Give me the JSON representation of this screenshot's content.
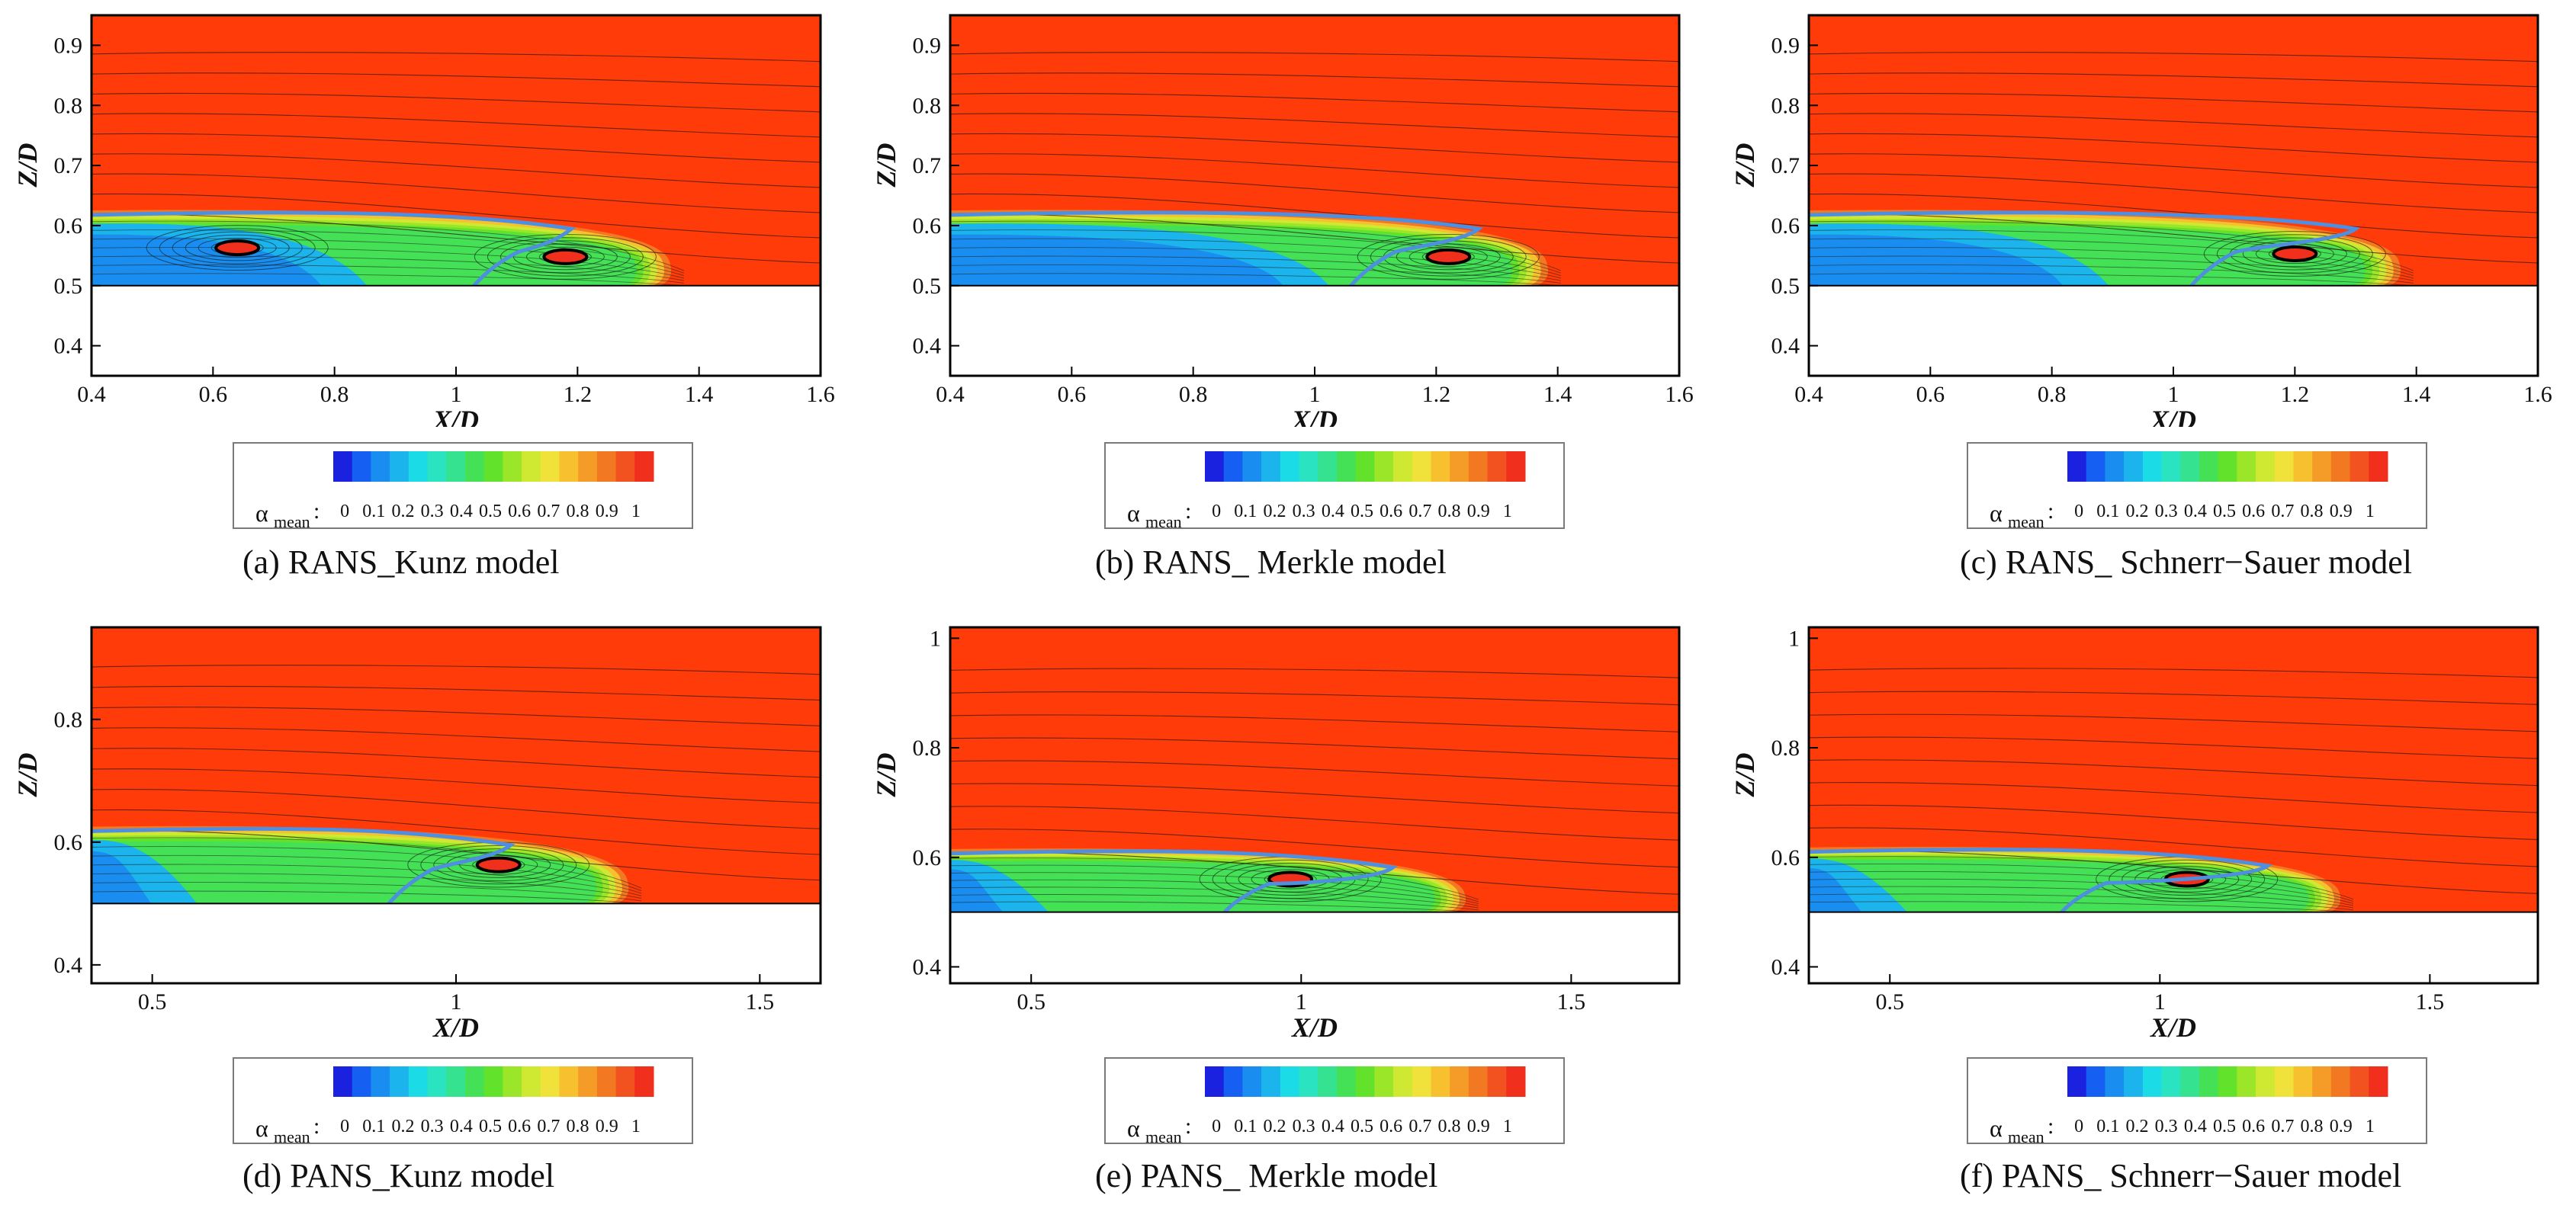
{
  "legend": {
    "symbol": "α",
    "subscript": "mean",
    "colon": ":",
    "ticks": [
      "0",
      "0.1",
      "0.2",
      "0.3",
      "0.4",
      "0.5",
      "0.6",
      "0.7",
      "0.8",
      "0.9",
      "1"
    ],
    "colors": [
      "#1a22e0",
      "#1560f2",
      "#1a8ef0",
      "#1bb4ec",
      "#1bdbe6",
      "#2ae3c1",
      "#35e28f",
      "#44e055",
      "#63e22c",
      "#9be629",
      "#cfe832",
      "#f0e23a",
      "#f6c02e",
      "#f59b27",
      "#f37822",
      "#f1521f",
      "#f02f1c"
    ]
  },
  "chart_data": [
    {
      "id": "a",
      "type": "contour",
      "caption": "(a) RANS_Kunz model",
      "title": "RANS_Kunz model",
      "xlabel": "X/D",
      "ylabel": "Z/D",
      "xlim": [
        0.4,
        1.6
      ],
      "ylim": [
        0.35,
        0.95
      ],
      "xticks": [
        "0.4",
        "0.6",
        "0.8",
        "1",
        "1.2",
        "1.4",
        "1.6"
      ],
      "yticks": [
        "0.4",
        "0.5",
        "0.6",
        "0.7",
        "0.8",
        "0.9"
      ],
      "xtick_values": [
        0.4,
        0.6,
        0.8,
        1.0,
        1.2,
        1.4,
        1.6
      ],
      "ytick_values": [
        0.4,
        0.5,
        0.6,
        0.7,
        0.8,
        0.9
      ],
      "wall_z": 0.5,
      "cavity_end_x": 1.35,
      "cavity_top_z": 0.625,
      "blue_zone_end_x": 0.78,
      "vortex_centers": [
        [
          0.64,
          0.563
        ],
        [
          1.18,
          0.548
        ]
      ],
      "interface_x": [
        1.04,
        1.19
      ]
    },
    {
      "id": "b",
      "type": "contour",
      "caption": "(b) RANS_ Merkle model",
      "title": "RANS_ Merkle model",
      "xlabel": "X/D",
      "ylabel": "Z/D",
      "xlim": [
        0.4,
        1.6
      ],
      "ylim": [
        0.35,
        0.95
      ],
      "xticks": [
        "0.4",
        "0.6",
        "0.8",
        "1",
        "1.2",
        "1.4",
        "1.6"
      ],
      "yticks": [
        "0.4",
        "0.5",
        "0.6",
        "0.7",
        "0.8",
        "0.9"
      ],
      "xtick_values": [
        0.4,
        0.6,
        0.8,
        1.0,
        1.2,
        1.4,
        1.6
      ],
      "ytick_values": [
        0.4,
        0.5,
        0.6,
        0.7,
        0.8,
        0.9
      ],
      "wall_z": 0.5,
      "cavity_end_x": 1.38,
      "cavity_top_z": 0.625,
      "blue_zone_end_x": 0.95,
      "vortex_centers": [
        [
          1.22,
          0.548
        ]
      ],
      "interface_x": [
        1.07,
        1.27
      ]
    },
    {
      "id": "c",
      "type": "contour",
      "caption": "(c) RANS_ Schnerr−Sauer model",
      "title": "RANS_ Schnerr−Sauer model",
      "xlabel": "X/D",
      "ylabel": "Z/D",
      "xlim": [
        0.4,
        1.6
      ],
      "ylim": [
        0.35,
        0.95
      ],
      "xticks": [
        "0.4",
        "0.6",
        "0.8",
        "1",
        "1.2",
        "1.4",
        "1.6"
      ],
      "yticks": [
        "0.4",
        "0.5",
        "0.6",
        "0.7",
        "0.8",
        "0.9"
      ],
      "xtick_values": [
        0.4,
        0.6,
        0.8,
        1.0,
        1.2,
        1.4,
        1.6
      ],
      "ytick_values": [
        0.4,
        0.5,
        0.6,
        0.7,
        0.8,
        0.9
      ],
      "wall_z": 0.5,
      "cavity_end_x": 1.37,
      "cavity_top_z": 0.625,
      "blue_zone_end_x": 0.82,
      "vortex_centers": [
        [
          1.2,
          0.553
        ]
      ],
      "interface_x": [
        1.04,
        1.3
      ]
    },
    {
      "id": "d",
      "type": "contour",
      "caption": "(d) PANS_Kunz model",
      "title": "PANS_Kunz model",
      "xlabel": "X/D",
      "ylabel": "Z/D",
      "xlim": [
        0.4,
        1.6
      ],
      "ylim": [
        0.37,
        0.95
      ],
      "xticks": [
        "0.5",
        "1",
        "1.5"
      ],
      "yticks": [
        "0.4",
        "0.6",
        "0.8"
      ],
      "xtick_values": [
        0.5,
        1.0,
        1.5
      ],
      "ytick_values": [
        0.4,
        0.6,
        0.8
      ],
      "wall_z": 0.5,
      "cavity_end_x": 1.28,
      "cavity_top_z": 0.625,
      "blue_zone_end_x": 0.5,
      "vortex_centers": [
        [
          1.07,
          0.563
        ]
      ],
      "interface_x": [
        0.9,
        1.09
      ]
    },
    {
      "id": "e",
      "type": "contour",
      "caption": "(e) PANS_ Merkle model",
      "title": "PANS_ Merkle model",
      "xlabel": "X/D",
      "ylabel": "Z/D",
      "xlim": [
        0.35,
        1.7
      ],
      "ylim": [
        0.37,
        1.02
      ],
      "xticks": [
        "0.5",
        "1",
        "1.5"
      ],
      "yticks": [
        "0.4",
        "0.6",
        "0.8",
        "1"
      ],
      "xtick_values": [
        0.5,
        1.0,
        1.5
      ],
      "ytick_values": [
        0.4,
        0.6,
        0.8,
        1.0
      ],
      "wall_z": 0.5,
      "cavity_end_x": 1.3,
      "cavity_top_z": 0.615,
      "blue_zone_end_x": 0.45,
      "vortex_centers": [
        [
          0.98,
          0.56
        ]
      ],
      "interface_x": [
        0.87,
        1.17
      ]
    },
    {
      "id": "f",
      "type": "contour",
      "caption": "(f) PANS_ Schnerr−Sauer model",
      "title": "PANS_ Schnerr−Sauer model",
      "xlabel": "X/D",
      "ylabel": "Z/D",
      "xlim": [
        0.35,
        1.7
      ],
      "ylim": [
        0.37,
        1.02
      ],
      "xticks": [
        "0.5",
        "1",
        "1.5"
      ],
      "yticks": [
        "0.4",
        "0.6",
        "0.8",
        "1"
      ],
      "xtick_values": [
        0.5,
        1.0,
        1.5
      ],
      "ytick_values": [
        0.4,
        0.6,
        0.8,
        1.0
      ],
      "wall_z": 0.5,
      "cavity_end_x": 1.33,
      "cavity_top_z": 0.618,
      "blue_zone_end_x": 0.45,
      "vortex_centers": [
        [
          1.05,
          0.56
        ]
      ],
      "interface_x": [
        0.83,
        1.2
      ]
    }
  ]
}
